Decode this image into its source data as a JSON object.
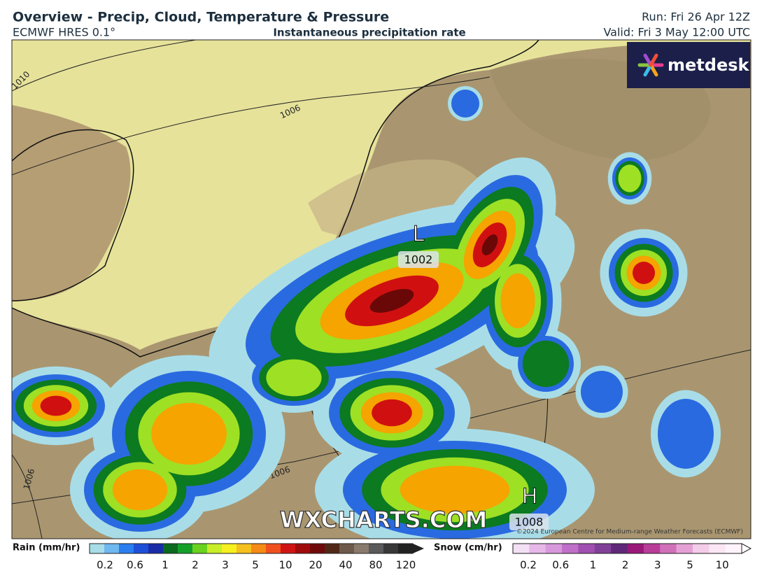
{
  "header": {
    "title": "Overview - Precip, Cloud, Temperature & Pressure",
    "model": "ECMWF HRES 0.1°",
    "subtitle": "Instantaneous precipitation rate",
    "run": "Run: Fri 26 Apr 12Z",
    "valid": "Valid: Fri 3 May 12:00 UTC"
  },
  "logo": "metdesk",
  "map": {
    "low": {
      "symbol": "L",
      "pressure": "1002"
    },
    "high": {
      "symbol": "H",
      "pressure": "1008"
    },
    "isobars": [
      "1010",
      "1006",
      "1006",
      "1006"
    ],
    "watermark": "WXCHARTS.COM",
    "copyright": "©2024 European Centre for Medium-range Weather Forecasts (ECMWF)"
  },
  "legend": {
    "rain": {
      "title": "Rain (mm/hr)",
      "ticks": [
        "0.2",
        "0.6",
        "1",
        "2",
        "3",
        "5",
        "10",
        "20",
        "40",
        "80",
        "120"
      ]
    },
    "snow": {
      "title": "Snow (cm/hr)",
      "ticks": [
        "0.2",
        "0.6",
        "1",
        "2",
        "3",
        "5",
        "10"
      ]
    }
  }
}
